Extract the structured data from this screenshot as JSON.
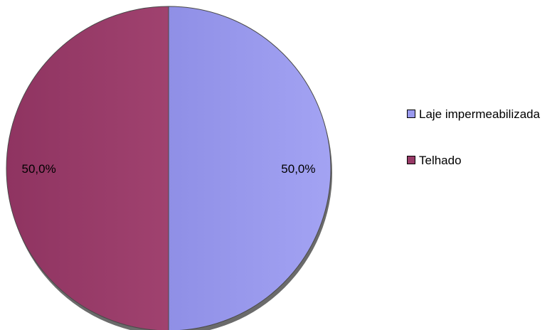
{
  "chart_data": {
    "type": "pie",
    "categories": [
      "Laje impermeabilizada",
      "Telhado"
    ],
    "values": [
      50.0,
      50.0
    ],
    "value_labels": [
      "50,0%",
      "50,0%"
    ],
    "colors": [
      "#9999ee",
      "#983a67"
    ],
    "legend_position": "right",
    "legend": {
      "items": [
        {
          "label": "Laje impermeabilizada",
          "color": "#9999ee"
        },
        {
          "label": "Telhado",
          "color": "#983a67"
        }
      ]
    }
  }
}
